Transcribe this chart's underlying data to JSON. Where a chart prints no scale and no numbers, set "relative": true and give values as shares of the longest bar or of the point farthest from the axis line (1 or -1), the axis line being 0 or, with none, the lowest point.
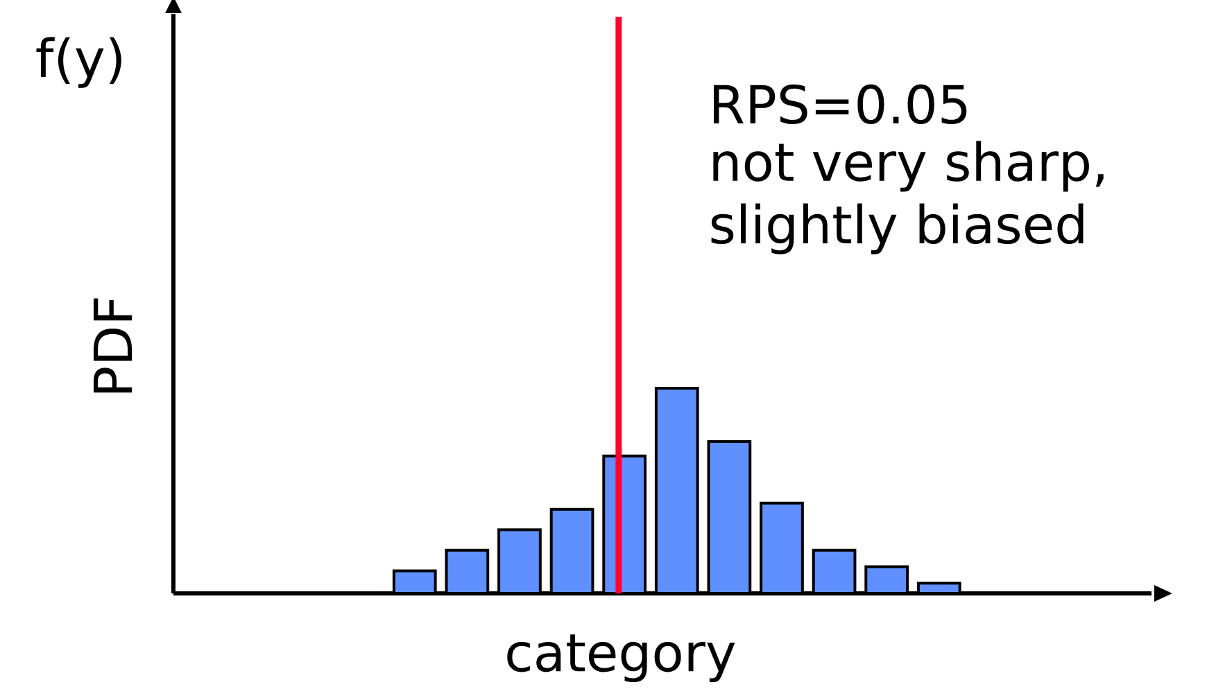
{
  "chart_data": {
    "type": "bar",
    "relative": true,
    "xlabel": "category",
    "ylabel": "PDF",
    "categories": [
      null,
      null,
      null,
      null,
      null,
      null,
      null,
      null,
      null,
      null,
      null
    ],
    "values": [
      0.11,
      0.21,
      0.31,
      0.41,
      0.67,
      1,
      0.74,
      0.44,
      0.21,
      0.13,
      0.05
    ],
    "color": "#6090ff",
    "annotations": [
      "f(y)",
      "RPS=0.05",
      "not very sharp,",
      "slightly biased"
    ]
  }
}
